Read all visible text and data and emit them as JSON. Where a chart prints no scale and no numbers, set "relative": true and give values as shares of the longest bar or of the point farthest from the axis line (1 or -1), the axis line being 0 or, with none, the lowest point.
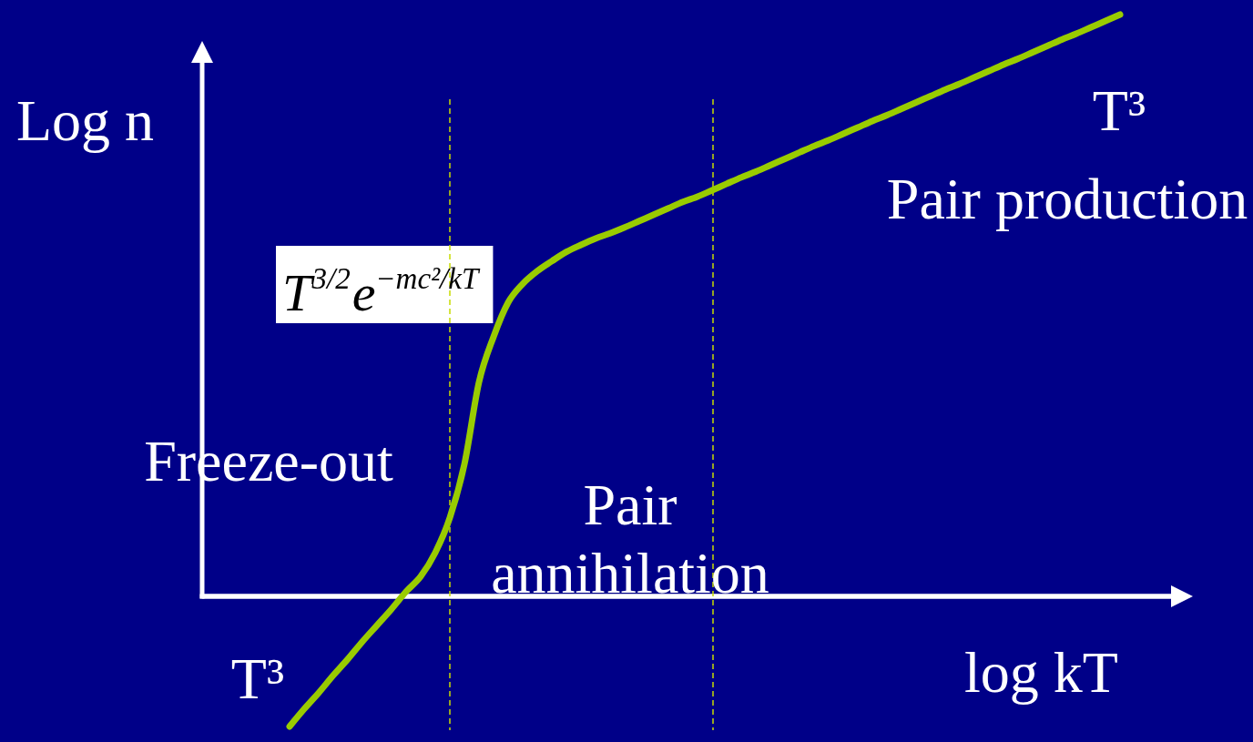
{
  "chart_data": {
    "type": "line",
    "relative": true,
    "xlabel": "log kT",
    "ylabel": "Log n",
    "categories": [
      null,
      null,
      null,
      null,
      null,
      null,
      null,
      null,
      null,
      null,
      null,
      null,
      null,
      null,
      null,
      null,
      null,
      null,
      null,
      null,
      null,
      null,
      null,
      null,
      null,
      null,
      null,
      null,
      null,
      null,
      null,
      null,
      null,
      null,
      null,
      null,
      null,
      null,
      null,
      null,
      null,
      null,
      null,
      null,
      null,
      null,
      null,
      null,
      null,
      null,
      null,
      null,
      null,
      null,
      null,
      null,
      null,
      null
    ],
    "series": [
      {
        "color": "#99cc00",
        "values": [
          -0.224,
          -0.194,
          -0.166,
          -0.136,
          -0.108,
          -0.078,
          -0.05,
          -0.022,
          0.008,
          0.034,
          0.075,
          0.135,
          0.227,
          0.368,
          0.446,
          0.505,
          0.537,
          0.559,
          0.576,
          0.592,
          0.604,
          0.615,
          0.624,
          0.634,
          0.645,
          0.656,
          0.667,
          0.678,
          0.687,
          0.698,
          0.709,
          0.72,
          0.73,
          0.741,
          0.752,
          0.763,
          0.774,
          0.784,
          0.795,
          0.806,
          0.817,
          0.827,
          0.838,
          0.849,
          0.86,
          0.871,
          0.881,
          0.892,
          0.903,
          0.914,
          0.924,
          0.935,
          0.946,
          0.957,
          0.967,
          0.978,
          0.989,
          1.0
        ]
      }
    ],
    "line_style": "solid",
    "annotations": [
      "T³",
      "Pair production",
      "T$^{3/2}$e$^{−mc²/kT}$",
      "Freeze-out",
      "Pair\nannihilation",
      "T³"
    ]
  }
}
